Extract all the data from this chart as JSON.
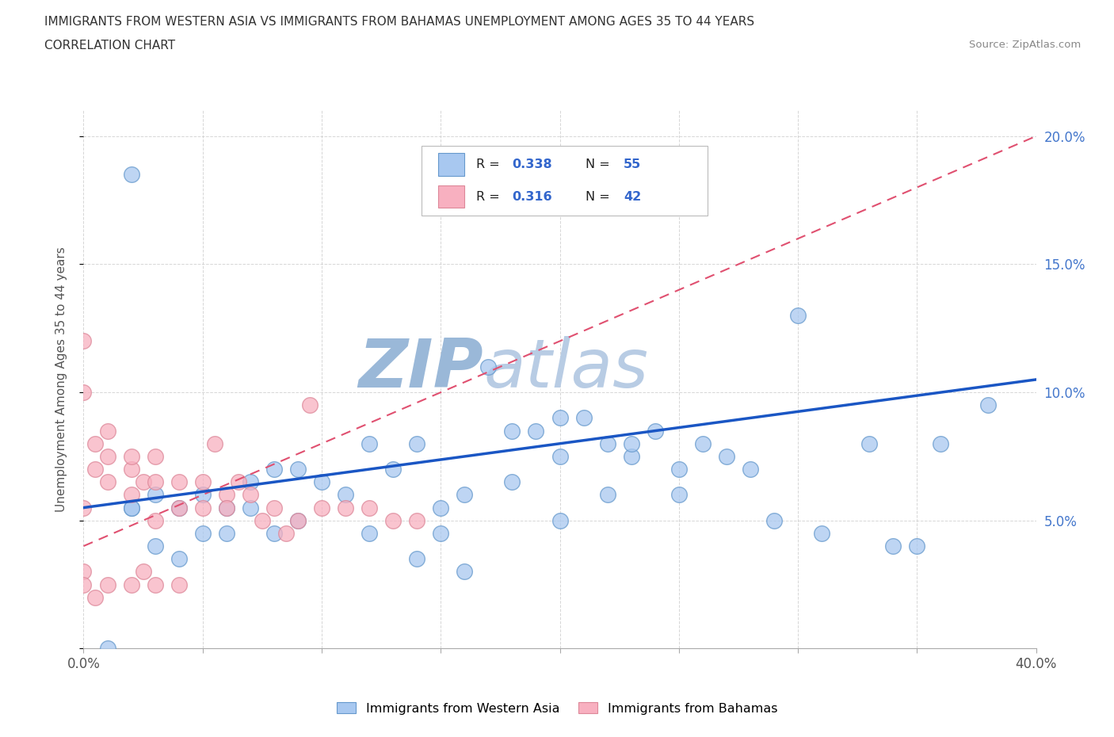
{
  "title_line1": "IMMIGRANTS FROM WESTERN ASIA VS IMMIGRANTS FROM BAHAMAS UNEMPLOYMENT AMONG AGES 35 TO 44 YEARS",
  "title_line2": "CORRELATION CHART",
  "source_text": "Source: ZipAtlas.com",
  "ylabel": "Unemployment Among Ages 35 to 44 years",
  "x_min": 0.0,
  "x_max": 0.4,
  "y_min": 0.0,
  "y_max": 0.21,
  "x_ticks": [
    0.0,
    0.05,
    0.1,
    0.15,
    0.2,
    0.25,
    0.3,
    0.35,
    0.4
  ],
  "y_ticks": [
    0.0,
    0.05,
    0.1,
    0.15,
    0.2
  ],
  "blue_color": "#a8c8f0",
  "blue_edge_color": "#6699cc",
  "pink_color": "#f8b0c0",
  "pink_edge_color": "#dd8899",
  "trend_blue_color": "#1a56c4",
  "trend_pink_color": "#e05070",
  "watermark_color": "#c8d8ee",
  "legend_r1": "0.338",
  "legend_n1": "55",
  "legend_r2": "0.316",
  "legend_n2": "42",
  "blue_scatter_x": [
    0.02,
    0.17,
    0.12,
    0.24,
    0.2,
    0.23,
    0.25,
    0.14,
    0.18,
    0.22,
    0.2,
    0.19,
    0.21,
    0.23,
    0.07,
    0.09,
    0.06,
    0.04,
    0.03,
    0.02,
    0.05,
    0.08,
    0.1,
    0.13,
    0.15,
    0.16,
    0.11,
    0.28,
    0.26,
    0.33,
    0.38,
    0.36,
    0.27,
    0.29,
    0.31,
    0.34,
    0.01,
    0.02,
    0.03,
    0.04,
    0.05,
    0.06,
    0.07,
    0.08,
    0.12,
    0.15,
    0.22,
    0.25,
    0.18,
    0.35,
    0.2,
    0.16,
    0.14,
    0.09,
    0.3
  ],
  "blue_scatter_y": [
    0.185,
    0.11,
    0.08,
    0.085,
    0.09,
    0.075,
    0.07,
    0.08,
    0.065,
    0.08,
    0.075,
    0.085,
    0.09,
    0.08,
    0.065,
    0.07,
    0.055,
    0.055,
    0.06,
    0.055,
    0.06,
    0.07,
    0.065,
    0.07,
    0.055,
    0.06,
    0.06,
    0.07,
    0.08,
    0.08,
    0.095,
    0.08,
    0.075,
    0.05,
    0.045,
    0.04,
    0.0,
    0.055,
    0.04,
    0.035,
    0.045,
    0.045,
    0.055,
    0.045,
    0.045,
    0.045,
    0.06,
    0.06,
    0.085,
    0.04,
    0.05,
    0.03,
    0.035,
    0.05,
    0.13
  ],
  "pink_scatter_x": [
    0.0,
    0.0,
    0.0,
    0.005,
    0.005,
    0.01,
    0.01,
    0.01,
    0.02,
    0.02,
    0.02,
    0.025,
    0.03,
    0.03,
    0.03,
    0.04,
    0.04,
    0.05,
    0.05,
    0.055,
    0.06,
    0.06,
    0.065,
    0.07,
    0.075,
    0.08,
    0.085,
    0.09,
    0.095,
    0.1,
    0.11,
    0.12,
    0.13,
    0.14,
    0.0,
    0.0,
    0.005,
    0.01,
    0.02,
    0.025,
    0.03,
    0.04
  ],
  "pink_scatter_y": [
    0.12,
    0.055,
    0.1,
    0.07,
    0.08,
    0.065,
    0.085,
    0.075,
    0.07,
    0.06,
    0.075,
    0.065,
    0.065,
    0.075,
    0.05,
    0.065,
    0.055,
    0.065,
    0.055,
    0.08,
    0.06,
    0.055,
    0.065,
    0.06,
    0.05,
    0.055,
    0.045,
    0.05,
    0.095,
    0.055,
    0.055,
    0.055,
    0.05,
    0.05,
    0.03,
    0.025,
    0.02,
    0.025,
    0.025,
    0.03,
    0.025,
    0.025
  ],
  "blue_trend_x0": 0.0,
  "blue_trend_y0": 0.055,
  "blue_trend_x1": 0.4,
  "blue_trend_y1": 0.105,
  "pink_trend_x0": 0.0,
  "pink_trend_y0": 0.04,
  "pink_trend_x1": 0.4,
  "pink_trend_y1": 0.2
}
